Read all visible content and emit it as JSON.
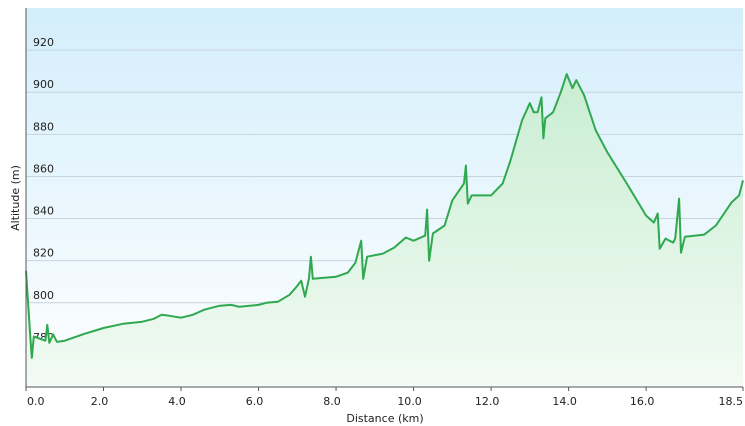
{
  "chart_data": {
    "type": "area-line",
    "xlabel": "Distance  (km)",
    "ylabel": "Altitude (m)",
    "color": "#2fa84f",
    "x": [
      0,
      0.1,
      0.15,
      0.2,
      0.5,
      0.55,
      0.6,
      0.7,
      0.8,
      1.0,
      1.5,
      2.0,
      2.5,
      3.0,
      3.3,
      3.5,
      3.7,
      4.0,
      4.3,
      4.6,
      5.0,
      5.3,
      5.5,
      6.0,
      6.2,
      6.5,
      6.8,
      7.0,
      7.1,
      7.2,
      7.3,
      7.35,
      7.4,
      8.0,
      8.3,
      8.5,
      8.65,
      8.7,
      8.8,
      9.2,
      9.5,
      9.8,
      10.0,
      10.3,
      10.35,
      10.4,
      10.5,
      10.8,
      11.0,
      11.3,
      11.35,
      11.4,
      11.5,
      12.0,
      12.3,
      12.5,
      12.8,
      13.0,
      13.1,
      13.2,
      13.3,
      13.35,
      13.4,
      13.6,
      13.8,
      13.95,
      14.1,
      14.2,
      14.4,
      14.7,
      15.0,
      15.5,
      16.0,
      16.2,
      16.3,
      16.35,
      16.5,
      16.7,
      16.75,
      16.85,
      16.9,
      17.0,
      17.5,
      17.8,
      18.2,
      18.4,
      18.5
    ],
    "values": [
      815.2,
      786.7,
      773.8,
      784,
      782,
      789.5,
      781,
      785,
      781.4,
      782,
      785.2,
      788,
      790,
      791,
      792.4,
      794.3,
      793.8,
      792.9,
      794.3,
      796.7,
      798.6,
      799,
      798.1,
      799,
      800,
      800.5,
      803.8,
      808,
      810.5,
      802.9,
      811.4,
      821.9,
      811.4,
      812.4,
      814.3,
      819,
      829.5,
      811.4,
      821.9,
      823.3,
      826.2,
      831,
      829.5,
      831.9,
      844.3,
      820,
      832.9,
      836.7,
      848.6,
      856.7,
      865.2,
      847.1,
      851,
      851,
      856.7,
      867.6,
      886.7,
      894.8,
      890.5,
      890.5,
      897.6,
      878.1,
      887.6,
      890.5,
      900,
      908.6,
      901.9,
      905.7,
      898.6,
      881.9,
      871.4,
      856.7,
      841.4,
      838.1,
      842.4,
      825.7,
      830.5,
      828.6,
      830.5,
      849.5,
      823.8,
      831.4,
      832.4,
      836.7,
      847.6,
      851,
      858.1
    ],
    "xlim": [
      0,
      18.5
    ],
    "ylim": [
      760,
      940
    ],
    "xticks": [
      {
        "value": 0,
        "label": "0.0"
      },
      {
        "value": 2,
        "label": "2.0"
      },
      {
        "value": 4,
        "label": "4.0"
      },
      {
        "value": 6,
        "label": "6.0"
      },
      {
        "value": 8,
        "label": "8.0"
      },
      {
        "value": 10,
        "label": "10.0"
      },
      {
        "value": 12,
        "label": "12.0"
      },
      {
        "value": 14,
        "label": "14.0"
      },
      {
        "value": 16,
        "label": "16.0"
      },
      18.5
    ],
    "yticks": [
      780,
      800,
      820,
      840,
      860,
      880,
      900,
      920
    ],
    "grid": true
  }
}
